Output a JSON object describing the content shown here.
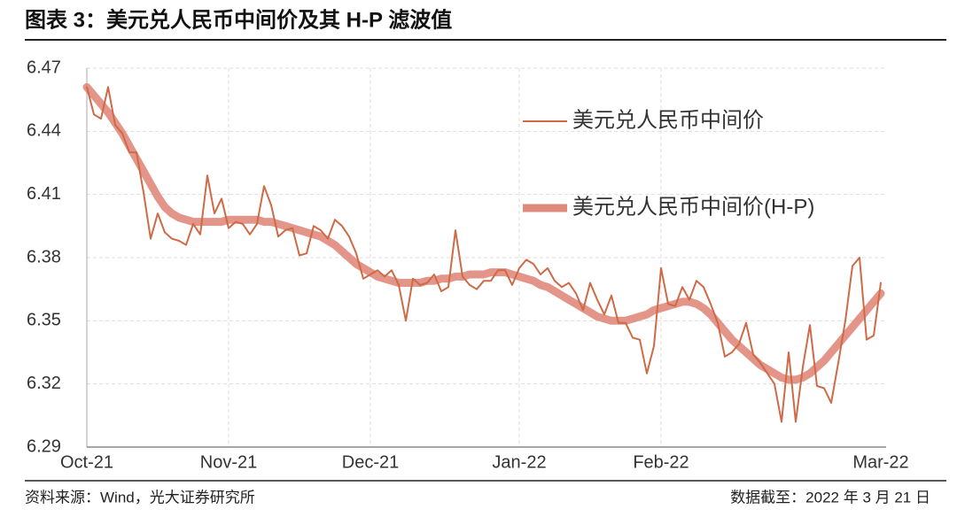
{
  "chart_data": {
    "type": "line",
    "title": "图表 3：美元兑人民币中间价及其 H-P 滤波值",
    "source": "资料来源：Wind，光大证券研究所",
    "data_cutoff": "数据截至：2022 年 3 月 21 日",
    "categories": [
      "Oct-21",
      null,
      null,
      null,
      null,
      null,
      null,
      null,
      null,
      null,
      null,
      null,
      null,
      null,
      null,
      null,
      null,
      null,
      null,
      null,
      "Nov-21",
      null,
      null,
      null,
      null,
      null,
      null,
      null,
      null,
      null,
      null,
      null,
      null,
      null,
      null,
      null,
      null,
      null,
      null,
      null,
      "Dec-21",
      null,
      null,
      null,
      null,
      null,
      null,
      null,
      null,
      null,
      null,
      null,
      null,
      null,
      null,
      null,
      null,
      null,
      null,
      null,
      null,
      "Jan-22",
      null,
      null,
      null,
      null,
      null,
      null,
      null,
      null,
      null,
      null,
      null,
      null,
      null,
      null,
      null,
      null,
      null,
      null,
      null,
      "Feb-22",
      null,
      null,
      null,
      null,
      null,
      null,
      null,
      null,
      null,
      null,
      null,
      null,
      null,
      null,
      null,
      null,
      null,
      null,
      null,
      null,
      null,
      null,
      null,
      null,
      null,
      null,
      null,
      null,
      null,
      null,
      "Mar-22"
    ],
    "series": [
      {
        "name": "美元兑人民币中间价",
        "color": "#cf6a46",
        "width": 2,
        "values": [
          6.461,
          6.448,
          6.446,
          6.461,
          6.443,
          6.439,
          6.43,
          6.43,
          6.411,
          6.389,
          6.401,
          6.392,
          6.389,
          6.388,
          6.386,
          6.396,
          6.391,
          6.419,
          6.401,
          6.408,
          6.394,
          6.397,
          6.396,
          6.391,
          6.396,
          6.414,
          6.405,
          6.39,
          6.393,
          6.394,
          6.381,
          6.382,
          6.395,
          6.393,
          6.389,
          6.398,
          6.395,
          6.39,
          6.382,
          6.37,
          6.372,
          6.374,
          6.371,
          6.374,
          6.367,
          6.35,
          6.37,
          6.367,
          6.368,
          6.372,
          6.364,
          6.366,
          6.393,
          6.371,
          6.367,
          6.365,
          6.369,
          6.369,
          6.374,
          6.374,
          6.367,
          6.375,
          6.379,
          6.377,
          6.372,
          6.375,
          6.369,
          6.366,
          6.368,
          6.363,
          6.355,
          6.368,
          6.36,
          6.353,
          6.362,
          6.349,
          6.349,
          6.342,
          6.341,
          6.325,
          6.338,
          6.375,
          6.358,
          6.357,
          6.366,
          6.36,
          6.369,
          6.366,
          6.358,
          6.349,
          6.333,
          6.335,
          6.339,
          6.349,
          6.334,
          6.33,
          6.325,
          6.32,
          6.302,
          6.335,
          6.302,
          6.328,
          6.348,
          6.319,
          6.318,
          6.311,
          6.33,
          6.35,
          6.376,
          6.38,
          6.341,
          6.343,
          6.368
        ]
      },
      {
        "name": "美元兑人民币中间价(H-P)",
        "color": "#e08a7c",
        "width": 9,
        "values": [
          6.461,
          6.457,
          6.453,
          6.449,
          6.444,
          6.439,
          6.433,
          6.427,
          6.421,
          6.415,
          6.409,
          6.404,
          6.401,
          6.399,
          6.398,
          6.397,
          6.397,
          6.397,
          6.397,
          6.397,
          6.398,
          6.398,
          6.398,
          6.398,
          6.398,
          6.397,
          6.397,
          6.396,
          6.395,
          6.394,
          6.393,
          6.392,
          6.391,
          6.39,
          6.388,
          6.386,
          6.383,
          6.38,
          6.377,
          6.375,
          6.373,
          6.371,
          6.37,
          6.369,
          6.368,
          6.368,
          6.368,
          6.368,
          6.369,
          6.369,
          6.37,
          6.37,
          6.371,
          6.371,
          6.372,
          6.372,
          6.372,
          6.373,
          6.373,
          6.373,
          6.372,
          6.371,
          6.37,
          6.369,
          6.367,
          6.366,
          6.364,
          6.362,
          6.36,
          6.358,
          6.356,
          6.354,
          6.352,
          6.351,
          6.35,
          6.35,
          6.35,
          6.351,
          6.352,
          6.353,
          6.355,
          6.356,
          6.357,
          6.358,
          6.359,
          6.359,
          6.358,
          6.356,
          6.353,
          6.349,
          6.345,
          6.341,
          6.338,
          6.335,
          6.332,
          6.329,
          6.327,
          6.325,
          6.323,
          6.322,
          6.322,
          6.323,
          6.325,
          6.328,
          6.331,
          6.335,
          6.339,
          6.343,
          6.347,
          6.351,
          6.355,
          6.359,
          6.363
        ]
      }
    ],
    "ylim": [
      6.29,
      6.47
    ],
    "yticks": [
      6.29,
      6.32,
      6.35,
      6.38,
      6.41,
      6.44,
      6.47
    ],
    "grid": true,
    "legend": "upper-right"
  }
}
